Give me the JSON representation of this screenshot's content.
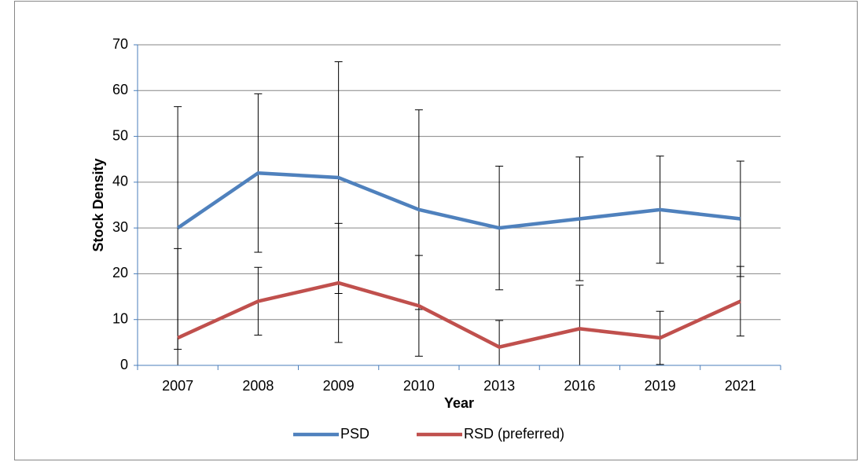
{
  "chart_data": {
    "type": "line",
    "x_label": "Year",
    "y_label": "Stock Density",
    "categories": [
      "2007",
      "2008",
      "2009",
      "2010",
      "2013",
      "2016",
      "2019",
      "2021"
    ],
    "series": [
      {
        "name": "PSD",
        "color": "#4f81bd",
        "values": [
          30,
          42,
          41,
          34,
          30,
          32,
          34,
          32
        ],
        "errors": [
          26.5,
          17.3,
          25.3,
          21.8,
          13.5,
          13.5,
          11.7,
          12.6
        ]
      },
      {
        "name": "RSD (preferred)",
        "color": "#c0504d",
        "values": [
          6,
          14,
          18,
          13,
          4,
          8,
          6,
          14
        ],
        "errors": [
          19.5,
          7.4,
          13,
          11,
          5.8,
          9.5,
          5.8,
          7.6
        ]
      }
    ],
    "ylim": [
      0,
      70
    ],
    "yticks": [
      0,
      10,
      20,
      30,
      40,
      50,
      60,
      70
    ],
    "grid": true,
    "legend": "bottom"
  }
}
